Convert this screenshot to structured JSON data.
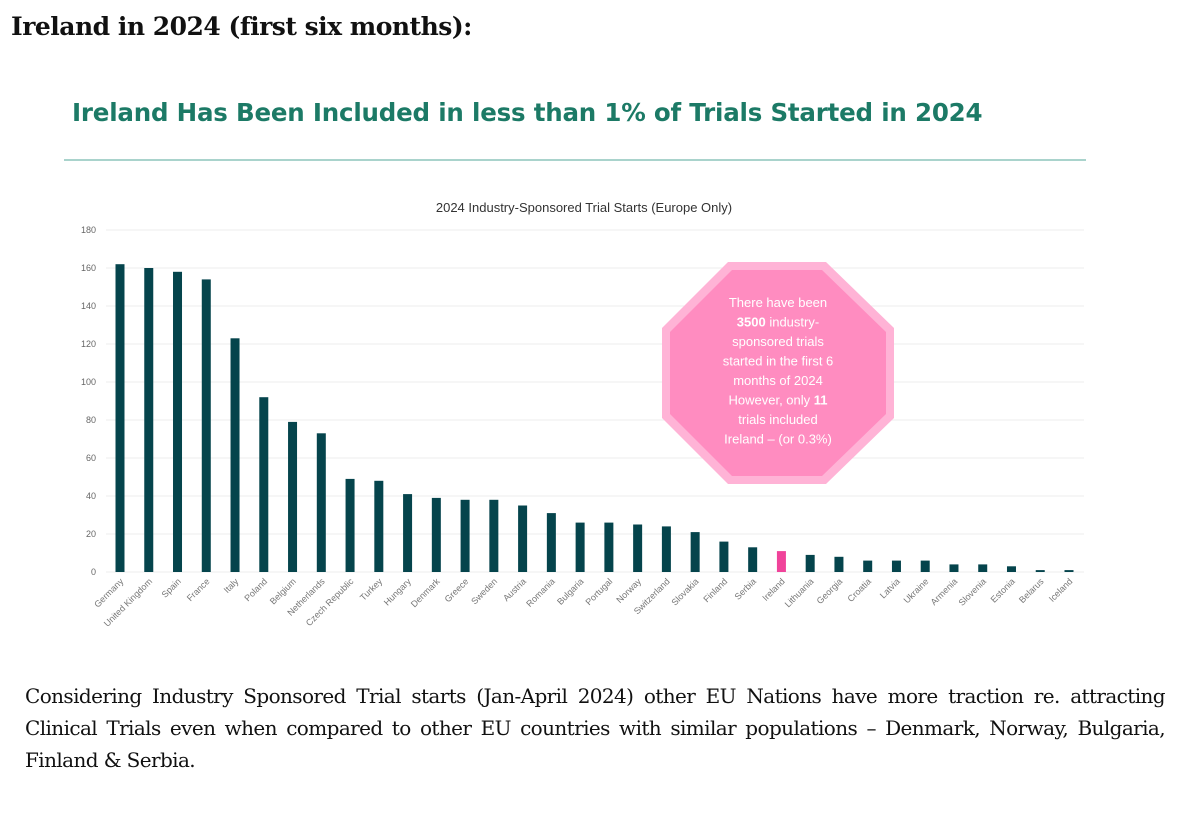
{
  "page": {
    "heading": "Ireland in 2024 (first six months):",
    "slide_title": "Ireland Has Been Included in less than 1% of Trials Started in 2024",
    "body_text": "Considering Industry Sponsored Trial starts (Jan-April 2024) other EU Nations have more traction re. attracting Clinical Trials even when compared to other EU countries with similar populations – Denmark, Norway, Bulgaria, Finland & Serbia."
  },
  "colors": {
    "title_green": "#1c7a66",
    "bar_default": "#05444c",
    "bar_highlight": "#f0439a",
    "callout_fill": "#ff8cc0",
    "callout_border": "#ffb3d6",
    "gridline": "#eeeeee"
  },
  "callout": {
    "lines": [
      [
        {
          "t": "There have been",
          "b": false
        }
      ],
      [
        {
          "t": "3500",
          "b": true
        },
        {
          "t": " industry-",
          "b": false
        }
      ],
      [
        {
          "t": "sponsored trials",
          "b": false
        }
      ],
      [
        {
          "t": "started in the first 6",
          "b": false
        }
      ],
      [
        {
          "t": "months of 2024",
          "b": false
        }
      ],
      [
        {
          "t": "However, only ",
          "b": false
        },
        {
          "t": "11",
          "b": true
        }
      ],
      [
        {
          "t": "trials included",
          "b": false
        }
      ],
      [
        {
          "t": "Ireland – (or 0.3%)",
          "b": false
        }
      ]
    ]
  },
  "chart_data": {
    "type": "bar",
    "title": "2024 Industry-Sponsored Trial Starts (Europe Only)",
    "xlabel": "",
    "ylabel": "",
    "ylim": [
      0,
      180
    ],
    "yticks": [
      0,
      20,
      40,
      60,
      80,
      100,
      120,
      140,
      160,
      180
    ],
    "grid": true,
    "legend": "none",
    "highlight": "Ireland",
    "categories": [
      "Germany",
      "United Kingdom",
      "Spain",
      "France",
      "Italy",
      "Poland",
      "Belgium",
      "Netherlands",
      "Czech Republic",
      "Turkey",
      "Hungary",
      "Denmark",
      "Greece",
      "Sweden",
      "Austria",
      "Romania",
      "Bulgaria",
      "Portugal",
      "Norway",
      "Switzerland",
      "Slovakia",
      "Finland",
      "Serbia",
      "Ireland",
      "Lithuania",
      "Georgia",
      "Croatia",
      "Latvia",
      "Ukraine",
      "Armenia",
      "Slovenia",
      "Estonia",
      "Belarus",
      "Iceland"
    ],
    "values": [
      162,
      160,
      158,
      154,
      123,
      92,
      79,
      73,
      49,
      48,
      41,
      39,
      38,
      38,
      35,
      31,
      26,
      26,
      25,
      24,
      21,
      16,
      13,
      11,
      9,
      8,
      6,
      6,
      6,
      4,
      4,
      3,
      1,
      1
    ]
  }
}
